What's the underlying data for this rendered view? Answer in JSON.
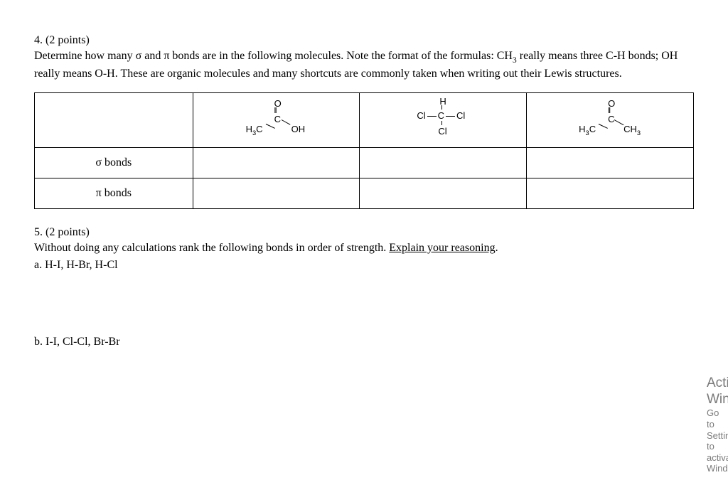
{
  "q4": {
    "header": "4. (2 points)",
    "text_pre": "Determine how many σ and π bonds are in the following molecules. Note the format of the formulas: CH",
    "text_sub": "3",
    "text_post": " really means three C-H bonds; OH really means O-H. These are organic molecules and many shortcuts are commonly taken when writing out their Lewis structures.",
    "row1_label": "σ bonds",
    "row2_label": "π bonds",
    "molecules": {
      "mol1": {
        "O": "O",
        "C": "C",
        "left_pre": "H",
        "left_sub": "3",
        "left_post": "C",
        "right": "OH",
        "dbl": "ll"
      },
      "mol2": {
        "H": "H",
        "Cl": "Cl",
        "C": "C"
      },
      "mol3": {
        "O": "O",
        "C": "C",
        "left_pre": "H",
        "left_sub": "3",
        "left_post": "C",
        "right_pre": "CH",
        "right_sub": "3",
        "dbl": "ll"
      }
    }
  },
  "q5": {
    "header": "5. (2 points)",
    "text_pre": "Without doing any calculations rank the following bonds in order of strength. ",
    "explain": "Explain your reasoning",
    "period": ".",
    "part_a": "a. H-I, H-Br, H-Cl",
    "part_b": "b. I-I, Cl-Cl, Br-Br"
  },
  "watermark": {
    "line1": "Activate Windows",
    "line2": "Go to Settings to activate Windows."
  }
}
